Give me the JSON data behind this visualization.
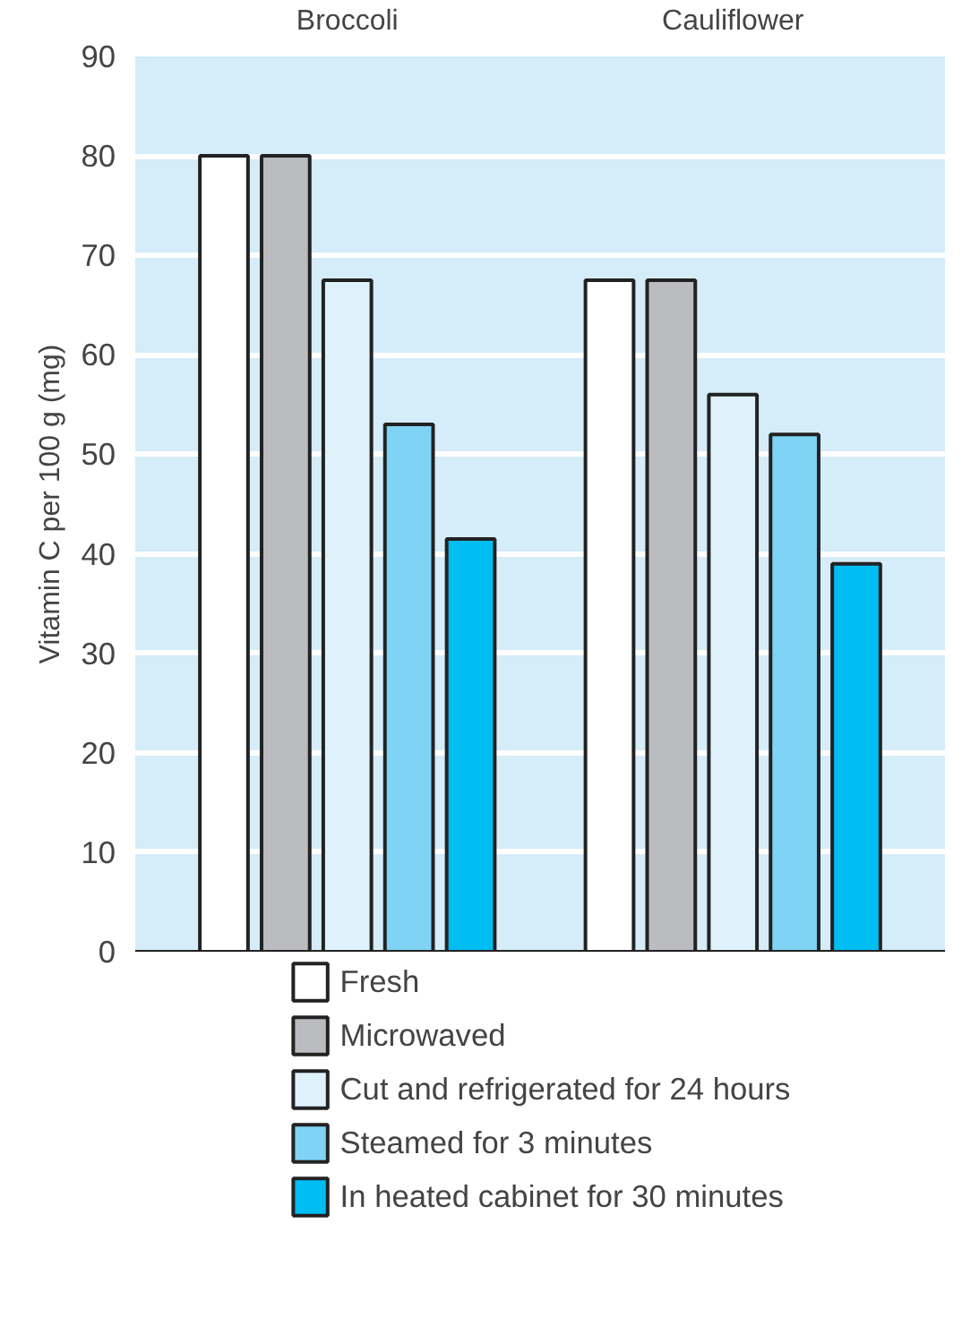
{
  "chart_data": {
    "type": "bar",
    "ylabel": "Vitamin C per 100 g (mg)",
    "categories": [
      "Broccoli",
      "Cauliflower"
    ],
    "series": [
      {
        "name": "Fresh",
        "color": "#ffffff",
        "values": [
          80,
          67.5
        ]
      },
      {
        "name": "Microwaved",
        "color": "#bbbcc0",
        "values": [
          80,
          67.5
        ]
      },
      {
        "name": "Cut and refrigerated for 24 hours",
        "color": "#dff2fb",
        "values": [
          67.5,
          56
        ]
      },
      {
        "name": "Steamed for 3 minutes",
        "color": "#7fd3f5",
        "values": [
          53,
          52
        ]
      },
      {
        "name": "In heated cabinet for 30 minutes",
        "color": "#00bdf2",
        "values": [
          41.5,
          39
        ]
      }
    ],
    "ylim": [
      0,
      90
    ],
    "yticks": [
      0,
      10,
      20,
      30,
      40,
      50,
      60,
      70,
      80,
      90
    ],
    "grid": "y",
    "legend": "bottom"
  }
}
